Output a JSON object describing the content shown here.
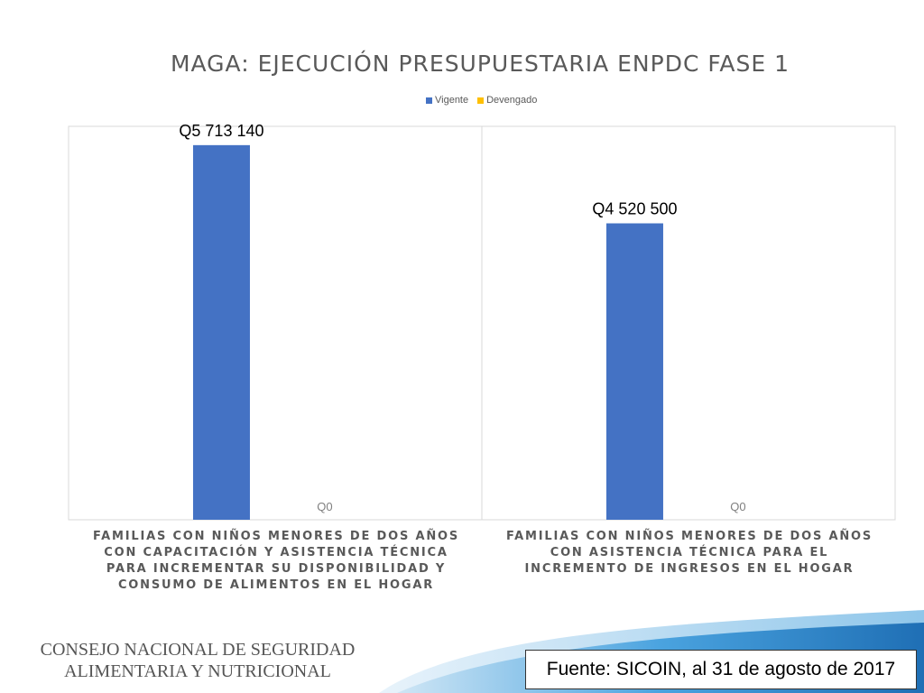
{
  "chart_data": {
    "type": "bar",
    "title": "MAGA: EJECUCIÓN PRESUPUESTARIA ENPDC FASE 1",
    "categories": [
      "FAMILIAS CON NIÑOS MENORES DE DOS AÑOS CON CAPACITACIÓN Y ASISTENCIA TÉCNICA PARA INCREMENTAR SU DISPONIBILIDAD Y CONSUMO DE ALIMENTOS EN EL HOGAR",
      "FAMILIAS CON NIÑOS MENORES DE DOS AÑOS CON ASISTENCIA TÉCNICA PARA EL INCREMENTO DE INGRESOS EN EL HOGAR"
    ],
    "series": [
      {
        "name": "Vigente",
        "color": "#4472C4",
        "values": [
          5713140,
          4520500
        ],
        "labels": [
          "Q5 713 140",
          "Q4 520 500"
        ]
      },
      {
        "name": "Devengado",
        "color": "#FFC000",
        "values": [
          0,
          0
        ],
        "labels": [
          "Q0",
          "Q0"
        ]
      }
    ],
    "ylim": [
      0,
      6000000
    ],
    "legend": "top-center",
    "grid": false
  },
  "footer": {
    "org_line1": "CONSEJO NACIONAL DE SEGURIDAD",
    "org_line2": "ALIMENTARIA Y NUTRICIONAL",
    "source": "Fuente: SICOIN, al 31 de agosto de 2017"
  }
}
